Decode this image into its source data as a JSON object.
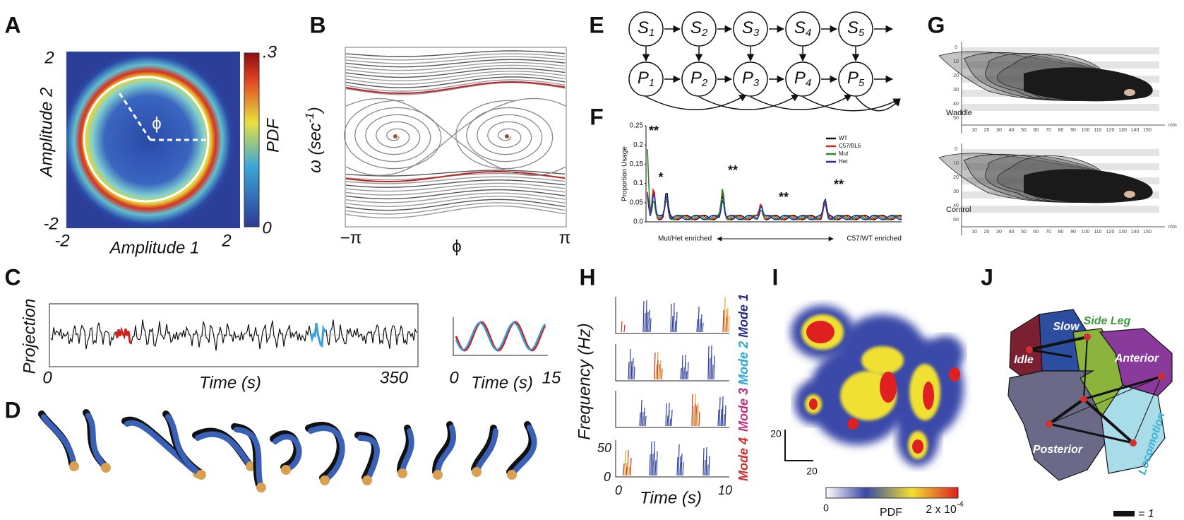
{
  "panels": {
    "A": {
      "letter": "A",
      "y_ticks": [
        "2",
        "-2"
      ],
      "x_ticks": [
        "-2",
        "2"
      ],
      "y_label": "Amplitude 2",
      "x_label": "Amplitude 1",
      "angle": "ϕ",
      "colorbar_max": ".3",
      "colorbar_min": "0",
      "colorbar_label": "PDF"
    },
    "B": {
      "letter": "B",
      "y_label": {
        "text": "ω (sec",
        "sup": "-1",
        "close": ")"
      },
      "x_ticks": [
        "−π",
        "ϕ",
        "π"
      ]
    },
    "C": {
      "letter": "C",
      "y_label": "Projection",
      "x_ticks": [
        "0",
        "350"
      ],
      "x_label": "Time (s)",
      "inset_x_ticks": [
        "0",
        "15"
      ],
      "inset_x_label": "Time (s)"
    },
    "D": {
      "letter": "D"
    },
    "E": {
      "letter": "E",
      "states": [
        {
          "letter": "S",
          "index": "1"
        },
        {
          "letter": "S",
          "index": "2"
        },
        {
          "letter": "S",
          "index": "3"
        },
        {
          "letter": "S",
          "index": "4"
        },
        {
          "letter": "S",
          "index": "5"
        }
      ],
      "observations": [
        {
          "letter": "P",
          "index": "1"
        },
        {
          "letter": "P",
          "index": "2"
        },
        {
          "letter": "P",
          "index": "3"
        },
        {
          "letter": "P",
          "index": "4"
        },
        {
          "letter": "P",
          "index": "5"
        }
      ]
    },
    "F": {
      "letter": "F",
      "y_label": "Proportion Usage",
      "y_ticks": [
        "0.25",
        "0.2",
        "0.15",
        "0.1",
        "0.05",
        "0.0"
      ],
      "legend": [
        {
          "name": "WT",
          "color": "#111111"
        },
        {
          "name": "C57/BL6",
          "color": "#d62020"
        },
        {
          "name": "Mut",
          "color": "#2a8a2a"
        },
        {
          "name": "Het",
          "color": "#2030a0"
        }
      ],
      "left_note": "Mut/Het enriched",
      "right_note": "C57/WT enriched",
      "significance": [
        "**",
        "*",
        "**",
        "**",
        "**"
      ]
    },
    "G": {
      "letter": "G",
      "conditions": [
        "Waddle",
        "Control"
      ],
      "unit": "mm",
      "ruler_ticks": [
        "10",
        "20",
        "30",
        "40",
        "50",
        "60",
        "70",
        "80",
        "90",
        "100",
        "110",
        "120",
        "130",
        "140",
        "150"
      ],
      "side_ticks": [
        "0",
        "10",
        "20",
        "30",
        "40",
        "50"
      ]
    },
    "H": {
      "letter": "H",
      "y_label": "Frequency (Hz)",
      "y_ticks": [
        "50",
        "0"
      ],
      "x_ticks": [
        "0",
        "10"
      ],
      "x_label": "Time (s)",
      "modes": [
        {
          "name": "Mode 1",
          "color": "#2a2a8a"
        },
        {
          "name": "Mode 2",
          "color": "#2aa8d8"
        },
        {
          "name": "Mode 3",
          "color": "#c0307f"
        },
        {
          "name": "Mode 4",
          "color": "#d03030"
        }
      ]
    },
    "I": {
      "letter": "I",
      "scale": [
        "20",
        "20"
      ],
      "colorbar_min": "0",
      "colorbar_label": "PDF",
      "colorbar_max": {
        "text": "2 x 10",
        "sup": "-4"
      }
    },
    "J": {
      "letter": "J",
      "regions": [
        {
          "name": "Slow",
          "color": "#2d4ea0"
        },
        {
          "name": "Side Leg",
          "color": "#8ab43c"
        },
        {
          "name": "Idle",
          "color": "#7a2030"
        },
        {
          "name": "Anterior",
          "color": "#8a3a9a"
        },
        {
          "name": "Posterior",
          "color": "#6a6a88"
        },
        {
          "name": "Locomotion",
          "color": "#a8dce8"
        }
      ],
      "legend": "= 1"
    }
  }
}
